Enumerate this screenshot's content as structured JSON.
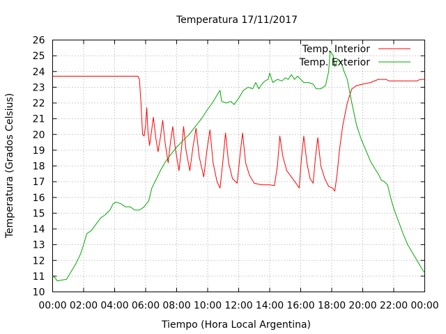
{
  "chart_data": {
    "type": "line",
    "title": "Temperatura 17/11/2017",
    "xlabel": "Tiempo (Hora Local Argentina)",
    "ylabel": "Temperatura (Grados Celsius)",
    "xlim": [
      0,
      24
    ],
    "ylim": [
      10,
      26
    ],
    "x_ticks": [
      {
        "value": 0,
        "label": "00:00"
      },
      {
        "value": 2,
        "label": "02:00"
      },
      {
        "value": 4,
        "label": "04:00"
      },
      {
        "value": 6,
        "label": "06:00"
      },
      {
        "value": 8,
        "label": "08:00"
      },
      {
        "value": 10,
        "label": "10:00"
      },
      {
        "value": 12,
        "label": "12:00"
      },
      {
        "value": 14,
        "label": "14:00"
      },
      {
        "value": 16,
        "label": "16:00"
      },
      {
        "value": 18,
        "label": "18:00"
      },
      {
        "value": 20,
        "label": "20:00"
      },
      {
        "value": 22,
        "label": "22:00"
      },
      {
        "value": 24,
        "label": "00:00"
      }
    ],
    "y_ticks": [
      10,
      11,
      12,
      13,
      14,
      15,
      16,
      17,
      18,
      19,
      20,
      21,
      22,
      23,
      24,
      25,
      26
    ],
    "grid": true,
    "legend_position": "top-right",
    "series": [
      {
        "name": "Temp. Interior",
        "color": "#ff0000",
        "points": [
          [
            0.0,
            23.7
          ],
          [
            5.5,
            23.7
          ],
          [
            5.6,
            23.5
          ],
          [
            5.7,
            22.0
          ],
          [
            5.8,
            20.0
          ],
          [
            5.9,
            19.9
          ],
          [
            6.0,
            20.6
          ],
          [
            6.07,
            21.7
          ],
          [
            6.15,
            20.2
          ],
          [
            6.25,
            19.3
          ],
          [
            6.35,
            20.0
          ],
          [
            6.5,
            21.1
          ],
          [
            6.65,
            19.8
          ],
          [
            6.8,
            18.9
          ],
          [
            6.95,
            19.8
          ],
          [
            7.1,
            20.9
          ],
          [
            7.25,
            19.5
          ],
          [
            7.45,
            18.2
          ],
          [
            7.6,
            19.5
          ],
          [
            7.75,
            20.5
          ],
          [
            7.9,
            19.2
          ],
          [
            8.15,
            17.7
          ],
          [
            8.3,
            19.0
          ],
          [
            8.45,
            20.5
          ],
          [
            8.6,
            19.0
          ],
          [
            8.85,
            17.7
          ],
          [
            9.05,
            19.2
          ],
          [
            9.25,
            20.4
          ],
          [
            9.45,
            18.6
          ],
          [
            9.75,
            17.3
          ],
          [
            9.95,
            19.0
          ],
          [
            10.15,
            20.3
          ],
          [
            10.35,
            18.2
          ],
          [
            10.6,
            17.0
          ],
          [
            10.8,
            16.6
          ],
          [
            11.0,
            18.5
          ],
          [
            11.15,
            20.1
          ],
          [
            11.35,
            18.2
          ],
          [
            11.6,
            17.2
          ],
          [
            11.9,
            16.9
          ],
          [
            12.1,
            18.8
          ],
          [
            12.25,
            20.1
          ],
          [
            12.45,
            18.2
          ],
          [
            12.7,
            17.4
          ],
          [
            13.0,
            16.9
          ],
          [
            13.5,
            16.8
          ],
          [
            14.0,
            16.8
          ],
          [
            14.3,
            16.75
          ],
          [
            14.5,
            18.0
          ],
          [
            14.65,
            19.9
          ],
          [
            14.85,
            18.6
          ],
          [
            15.1,
            17.7
          ],
          [
            15.4,
            17.3
          ],
          [
            15.7,
            16.9
          ],
          [
            15.9,
            16.6
          ],
          [
            16.05,
            18.5
          ],
          [
            16.2,
            19.9
          ],
          [
            16.4,
            18.2
          ],
          [
            16.6,
            17.2
          ],
          [
            16.8,
            16.9
          ],
          [
            16.95,
            18.5
          ],
          [
            17.1,
            19.8
          ],
          [
            17.3,
            18.0
          ],
          [
            17.55,
            17.2
          ],
          [
            17.8,
            16.7
          ],
          [
            18.05,
            16.6
          ],
          [
            18.2,
            16.4
          ],
          [
            18.35,
            17.5
          ],
          [
            18.5,
            19.0
          ],
          [
            18.7,
            20.5
          ],
          [
            19.0,
            22.0
          ],
          [
            19.3,
            22.9
          ],
          [
            19.6,
            23.1
          ],
          [
            20.0,
            23.2
          ],
          [
            20.5,
            23.3
          ],
          [
            21.0,
            23.5
          ],
          [
            21.5,
            23.5
          ],
          [
            21.7,
            23.4
          ],
          [
            22.0,
            23.4
          ],
          [
            23.0,
            23.4
          ],
          [
            23.5,
            23.4
          ],
          [
            23.7,
            23.5
          ],
          [
            24.0,
            23.5
          ]
        ]
      },
      {
        "name": "Temp. Exterior",
        "color": "#00aa00",
        "points": [
          [
            0.0,
            11.0
          ],
          [
            0.15,
            10.9
          ],
          [
            0.3,
            10.7
          ],
          [
            0.6,
            10.75
          ],
          [
            0.9,
            10.8
          ],
          [
            1.2,
            11.3
          ],
          [
            1.5,
            11.8
          ],
          [
            1.8,
            12.4
          ],
          [
            2.0,
            13.0
          ],
          [
            2.2,
            13.7
          ],
          [
            2.5,
            13.9
          ],
          [
            2.8,
            14.3
          ],
          [
            3.1,
            14.7
          ],
          [
            3.4,
            14.9
          ],
          [
            3.7,
            15.2
          ],
          [
            3.9,
            15.6
          ],
          [
            4.1,
            15.7
          ],
          [
            4.4,
            15.6
          ],
          [
            4.7,
            15.4
          ],
          [
            5.0,
            15.4
          ],
          [
            5.3,
            15.2
          ],
          [
            5.6,
            15.2
          ],
          [
            5.9,
            15.4
          ],
          [
            6.2,
            15.8
          ],
          [
            6.4,
            16.6
          ],
          [
            6.7,
            17.2
          ],
          [
            7.0,
            17.8
          ],
          [
            7.3,
            18.3
          ],
          [
            7.6,
            18.7
          ],
          [
            8.0,
            19.2
          ],
          [
            8.4,
            19.6
          ],
          [
            8.8,
            20.0
          ],
          [
            9.2,
            20.5
          ],
          [
            9.6,
            21.0
          ],
          [
            10.0,
            21.6
          ],
          [
            10.3,
            22.0
          ],
          [
            10.6,
            22.5
          ],
          [
            10.8,
            22.8
          ],
          [
            10.9,
            22.1
          ],
          [
            11.2,
            22.0
          ],
          [
            11.5,
            22.1
          ],
          [
            11.7,
            21.9
          ],
          [
            12.0,
            22.3
          ],
          [
            12.3,
            22.8
          ],
          [
            12.6,
            23.0
          ],
          [
            12.9,
            22.9
          ],
          [
            13.1,
            23.3
          ],
          [
            13.3,
            22.9
          ],
          [
            13.5,
            23.2
          ],
          [
            13.7,
            23.4
          ],
          [
            13.9,
            23.5
          ],
          [
            14.0,
            23.9
          ],
          [
            14.2,
            23.3
          ],
          [
            14.5,
            23.5
          ],
          [
            14.8,
            23.4
          ],
          [
            15.0,
            23.6
          ],
          [
            15.2,
            23.5
          ],
          [
            15.4,
            23.8
          ],
          [
            15.6,
            23.5
          ],
          [
            15.8,
            23.7
          ],
          [
            16.0,
            23.5
          ],
          [
            16.2,
            23.3
          ],
          [
            16.5,
            23.3
          ],
          [
            16.8,
            23.2
          ],
          [
            17.0,
            22.9
          ],
          [
            17.3,
            22.9
          ],
          [
            17.6,
            23.1
          ],
          [
            17.8,
            24.0
          ],
          [
            17.9,
            25.3
          ],
          [
            18.1,
            25.0
          ],
          [
            18.2,
            24.3
          ],
          [
            18.4,
            24.8
          ],
          [
            18.6,
            24.6
          ],
          [
            18.8,
            24.0
          ],
          [
            19.0,
            23.5
          ],
          [
            19.3,
            22.0
          ],
          [
            19.6,
            20.6
          ],
          [
            19.9,
            19.7
          ],
          [
            20.2,
            19.0
          ],
          [
            20.5,
            18.3
          ],
          [
            20.8,
            17.8
          ],
          [
            21.0,
            17.5
          ],
          [
            21.2,
            17.1
          ],
          [
            21.4,
            17.0
          ],
          [
            21.6,
            16.8
          ],
          [
            21.8,
            16.0
          ],
          [
            22.0,
            15.3
          ],
          [
            22.3,
            14.5
          ],
          [
            22.6,
            13.7
          ],
          [
            22.9,
            13.0
          ],
          [
            23.2,
            12.5
          ],
          [
            23.5,
            12.0
          ],
          [
            23.8,
            11.5
          ],
          [
            24.0,
            11.2
          ]
        ]
      }
    ]
  }
}
